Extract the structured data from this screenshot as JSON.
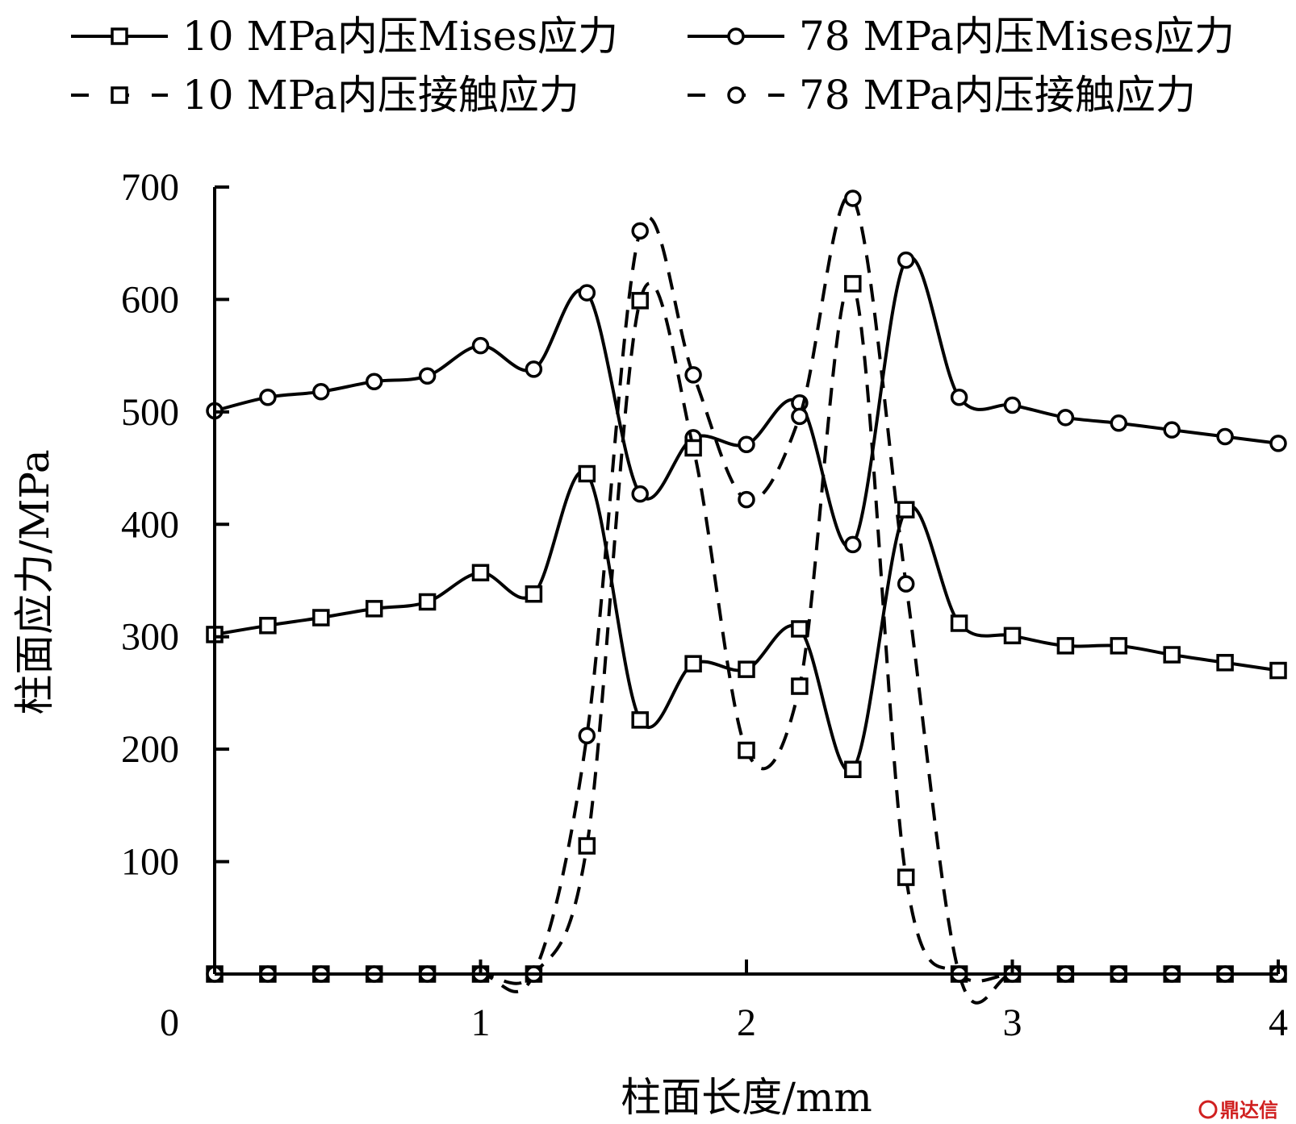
{
  "chart_data": {
    "type": "line",
    "title": "",
    "xlabel": "柱面长度/mm",
    "ylabel": "柱面应力/MPa",
    "xlim": [
      0,
      4
    ],
    "ylim": [
      0,
      700
    ],
    "x_origin_label": "0",
    "xticks": [
      1,
      2,
      3,
      4
    ],
    "xtick_labels": [
      "1",
      "2",
      "3",
      "4"
    ],
    "yticks": [
      100,
      200,
      300,
      400,
      500,
      600,
      700
    ],
    "ytick_labels": [
      "100",
      "200",
      "300",
      "400",
      "500",
      "600",
      "700"
    ],
    "grid": false,
    "legend_position": "top",
    "series": [
      {
        "name": "10 MPa内压Mises应力",
        "style": "solid",
        "marker": "square",
        "x": [
          0,
          0.2,
          0.4,
          0.6,
          0.8,
          1.0,
          1.2,
          1.4,
          1.6,
          1.8,
          2.0,
          2.2,
          2.4,
          2.6,
          2.8,
          3.0,
          3.2,
          3.4,
          3.6,
          3.8,
          4.0
        ],
        "y": [
          302,
          310,
          317,
          325,
          331,
          357,
          338,
          445,
          226,
          276,
          271,
          307,
          182,
          413,
          312,
          301,
          292,
          292,
          284,
          277,
          270
        ]
      },
      {
        "name": "78 MPa内压Mises应力",
        "style": "solid",
        "marker": "circle",
        "x": [
          0,
          0.2,
          0.4,
          0.6,
          0.8,
          1.0,
          1.2,
          1.4,
          1.6,
          1.8,
          2.0,
          2.2,
          2.4,
          2.6,
          2.8,
          3.0,
          3.2,
          3.4,
          3.6,
          3.8,
          4.0
        ],
        "y": [
          501,
          513,
          518,
          527,
          532,
          559,
          538,
          606,
          427,
          477,
          471,
          508,
          382,
          635,
          513,
          506,
          495,
          490,
          484,
          478,
          472
        ]
      },
      {
        "name": "10 MPa内压接触应力",
        "style": "dashed",
        "marker": "square",
        "x": [
          0,
          0.2,
          0.4,
          0.6,
          0.8,
          1.0,
          1.2,
          1.4,
          1.6,
          1.8,
          2.0,
          2.2,
          2.4,
          2.6,
          2.8,
          3.0,
          3.2,
          3.4,
          3.6,
          3.8,
          4.0
        ],
        "y": [
          0,
          0,
          0,
          0,
          0,
          0,
          0,
          114,
          599,
          468,
          199,
          256,
          614,
          86,
          0,
          0,
          0,
          0,
          0,
          0,
          0
        ]
      },
      {
        "name": "78 MPa内压接触应力",
        "style": "dashed",
        "marker": "circle",
        "x": [
          0,
          0.2,
          0.4,
          0.6,
          0.8,
          1.0,
          1.2,
          1.4,
          1.6,
          1.8,
          2.0,
          2.2,
          2.4,
          2.6,
          2.8,
          3.0,
          3.2,
          3.4,
          3.6,
          3.8,
          4.0
        ],
        "y": [
          0,
          0,
          0,
          0,
          0,
          0,
          0,
          212,
          661,
          533,
          422,
          496,
          690,
          347,
          0,
          0,
          0,
          0,
          0,
          0,
          0
        ]
      }
    ]
  },
  "watermark": "鼎达信",
  "colors": {
    "line": "#000000",
    "background": "#ffffff"
  }
}
